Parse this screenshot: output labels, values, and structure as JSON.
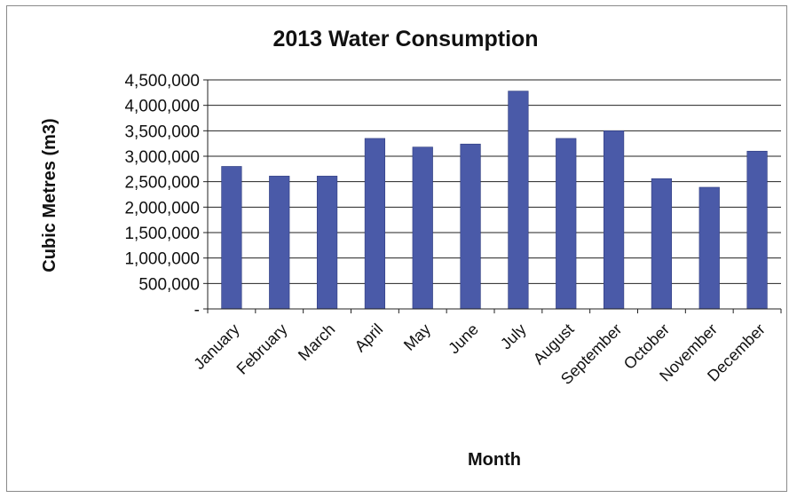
{
  "chart_data": {
    "type": "bar",
    "title": "2013 Water Consumption",
    "xlabel": "Month",
    "ylabel": "Cubic Metres (m3)",
    "ylim": [
      0,
      4500000
    ],
    "ytick_values": [
      0,
      500000,
      1000000,
      1500000,
      2000000,
      2500000,
      3000000,
      3500000,
      4000000,
      4500000
    ],
    "ytick_labels": [
      "-",
      "500,000",
      "1,000,000",
      "1,500,000",
      "2,000,000",
      "2,500,000",
      "3,000,000",
      "3,500,000",
      "4,000,000",
      "4,500,000"
    ],
    "grid": true,
    "legend": "none",
    "bar_color": "#4a5aa8",
    "categories": [
      "January",
      "February",
      "March",
      "April",
      "May",
      "June",
      "July",
      "August",
      "September",
      "October",
      "November",
      "December"
    ],
    "values": [
      2800000,
      2610000,
      2610000,
      3350000,
      3180000,
      3240000,
      4280000,
      3350000,
      3500000,
      2560000,
      2390000,
      3100000
    ]
  }
}
